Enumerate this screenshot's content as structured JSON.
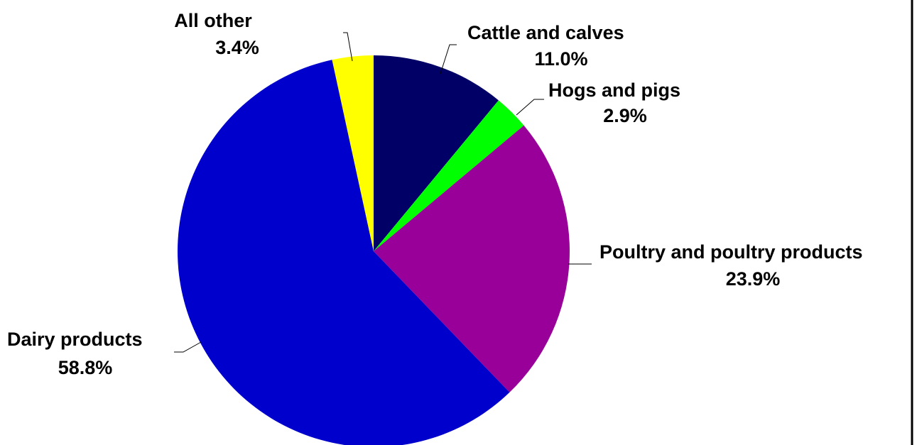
{
  "chart_data": {
    "type": "pie",
    "start_angle_deg": 0,
    "direction": "clockwise",
    "slices": [
      {
        "name": "Cattle and calves",
        "value": 11.0,
        "label": "11.0%",
        "color": "#000066"
      },
      {
        "name": "Hogs and pigs",
        "value": 2.9,
        "label": "2.9%",
        "color": "#00ff00"
      },
      {
        "name": "Poultry and poultry products",
        "value": 23.9,
        "label": "23.9%",
        "color": "#990099"
      },
      {
        "name": "Dairy products",
        "value": 58.8,
        "label": "58.8%",
        "color": "#0000cc"
      },
      {
        "name": "All other",
        "value": 3.4,
        "label": "3.4%",
        "color": "#ffff00"
      }
    ],
    "legend": "none",
    "grid": false
  }
}
